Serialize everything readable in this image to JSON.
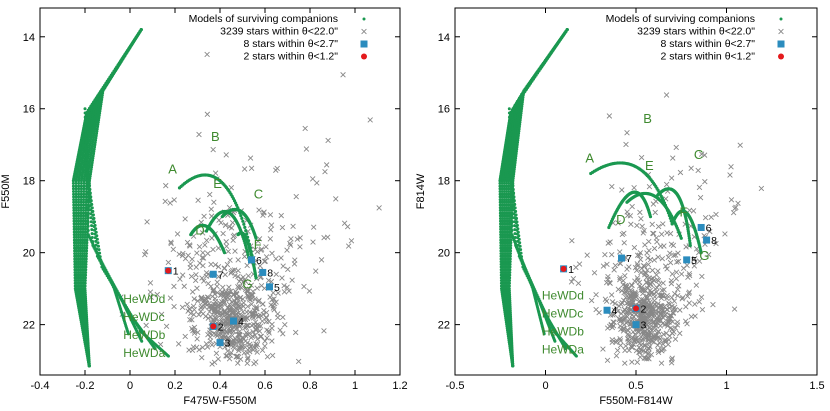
{
  "chart_data": [
    {
      "type": "scatter",
      "panel": "left",
      "xlabel": "F475W-F550M",
      "ylabel": "F550M",
      "xlim": [
        -0.4,
        1.2
      ],
      "ylim": [
        23.4,
        13.2
      ],
      "y_inverted": true,
      "xticks": [
        "-0.4",
        "-0.2",
        "0",
        "0.2",
        "0.4",
        "0.6",
        "0.8",
        "1",
        "1.2"
      ],
      "xtick_values": [
        -0.4,
        -0.2,
        0,
        0.2,
        0.4,
        0.6,
        0.8,
        1.0,
        1.2
      ],
      "yticks": [
        "14",
        "16",
        "18",
        "20",
        "22"
      ],
      "ytick_values": [
        14,
        16,
        18,
        20,
        22
      ],
      "legend": [
        {
          "label": "Models of surviving companions",
          "marker": "dot",
          "color": "#1a9850"
        },
        {
          "label": "3239 stars within θ<22.0\"",
          "marker": "cross",
          "color": "#888888"
        },
        {
          "label": "8 stars within θ<2.7\"",
          "marker": "square",
          "color": "#2b8cbe"
        },
        {
          "label": "2 stars within θ<1.2\"",
          "marker": "circle",
          "color": "#e41a1c"
        }
      ],
      "model_labels": [
        {
          "text": "A",
          "x": 0.17,
          "y": 17.8
        },
        {
          "text": "B",
          "x": 0.36,
          "y": 16.9
        },
        {
          "text": "E",
          "x": 0.37,
          "y": 18.2
        },
        {
          "text": "C",
          "x": 0.55,
          "y": 18.5
        },
        {
          "text": "D",
          "x": 0.29,
          "y": 19.5
        },
        {
          "text": "F",
          "x": 0.55,
          "y": 19.9
        },
        {
          "text": "G",
          "x": 0.5,
          "y": 21.0
        },
        {
          "text": "HeWDd",
          "x": -0.03,
          "y": 21.4
        },
        {
          "text": "HeWDc",
          "x": -0.03,
          "y": 21.9
        },
        {
          "text": "HeWDb",
          "x": -0.03,
          "y": 22.4
        },
        {
          "text": "HeWDa",
          "x": -0.03,
          "y": 22.9
        }
      ],
      "stars_2_7": [
        {
          "id": "3",
          "x": 0.4,
          "y": 22.5
        },
        {
          "id": "4",
          "x": 0.46,
          "y": 21.9
        },
        {
          "id": "5",
          "x": 0.62,
          "y": 20.95
        },
        {
          "id": "6",
          "x": 0.54,
          "y": 20.2
        },
        {
          "id": "7",
          "x": 0.37,
          "y": 20.6
        },
        {
          "id": "8",
          "x": 0.59,
          "y": 20.55
        },
        {
          "id": "1",
          "x": 0.17,
          "y": 20.5
        },
        {
          "id": "2",
          "x": 0.37,
          "y": 22.05
        }
      ],
      "stars_1_2": [
        {
          "id": "1",
          "x": 0.17,
          "y": 20.5
        },
        {
          "id": "2",
          "x": 0.37,
          "y": 22.05
        }
      ],
      "field_cloud": {
        "center_x": 0.45,
        "center_y": 21.9,
        "count_drawn": 700
      }
    },
    {
      "type": "scatter",
      "panel": "right",
      "xlabel": "F550M-F814W",
      "ylabel": "F814W",
      "xlim": [
        -0.5,
        1.5
      ],
      "ylim": [
        23.4,
        13.2
      ],
      "y_inverted": true,
      "xticks": [
        "-0.5",
        "0",
        "0.5",
        "1",
        "1.5"
      ],
      "xtick_values": [
        -0.5,
        0,
        0.5,
        1.0,
        1.5
      ],
      "yticks": [
        "14",
        "16",
        "18",
        "20",
        "22"
      ],
      "ytick_values": [
        14,
        16,
        18,
        20,
        22
      ],
      "legend": [
        {
          "label": "Models of surviving companions",
          "marker": "dot",
          "color": "#1a9850"
        },
        {
          "label": "3239 stars within θ<22.0\"",
          "marker": "cross",
          "color": "#888888"
        },
        {
          "label": "8 stars within θ<2.7\"",
          "marker": "square",
          "color": "#2b8cbe"
        },
        {
          "label": "2 stars within θ<1.2\"",
          "marker": "circle",
          "color": "#e41a1c"
        }
      ],
      "model_labels": [
        {
          "text": "A",
          "x": 0.22,
          "y": 17.5
        },
        {
          "text": "B",
          "x": 0.54,
          "y": 16.4
        },
        {
          "text": "E",
          "x": 0.55,
          "y": 17.7
        },
        {
          "text": "C",
          "x": 0.82,
          "y": 17.4
        },
        {
          "text": "D",
          "x": 0.39,
          "y": 19.2
        },
        {
          "text": "F",
          "x": 0.74,
          "y": 19.0
        },
        {
          "text": "G",
          "x": 0.85,
          "y": 20.2
        },
        {
          "text": "HeWDd",
          "x": -0.02,
          "y": 21.3
        },
        {
          "text": "HeWDc",
          "x": -0.02,
          "y": 21.8
        },
        {
          "text": "HeWDb",
          "x": -0.02,
          "y": 22.3
        },
        {
          "text": "HeWDa",
          "x": -0.02,
          "y": 22.8
        }
      ],
      "stars_2_7": [
        {
          "id": "3",
          "x": 0.5,
          "y": 22.0
        },
        {
          "id": "4",
          "x": 0.34,
          "y": 21.6
        },
        {
          "id": "5",
          "x": 0.78,
          "y": 20.2
        },
        {
          "id": "6",
          "x": 0.86,
          "y": 19.3
        },
        {
          "id": "7",
          "x": 0.42,
          "y": 20.15
        },
        {
          "id": "8",
          "x": 0.89,
          "y": 19.65
        },
        {
          "id": "1",
          "x": 0.1,
          "y": 20.45
        },
        {
          "id": "2",
          "x": 0.5,
          "y": 21.55
        }
      ],
      "stars_1_2": [
        {
          "id": "1",
          "x": 0.1,
          "y": 20.45
        },
        {
          "id": "2",
          "x": 0.5,
          "y": 21.55
        }
      ],
      "field_cloud": {
        "center_x": 0.55,
        "center_y": 21.8,
        "count_drawn": 700
      }
    }
  ],
  "colors": {
    "model": "#1a9850",
    "field": "#888888",
    "square": "#2b8cbe",
    "circle": "#e41a1c",
    "label_green": "#3f8a2f"
  }
}
